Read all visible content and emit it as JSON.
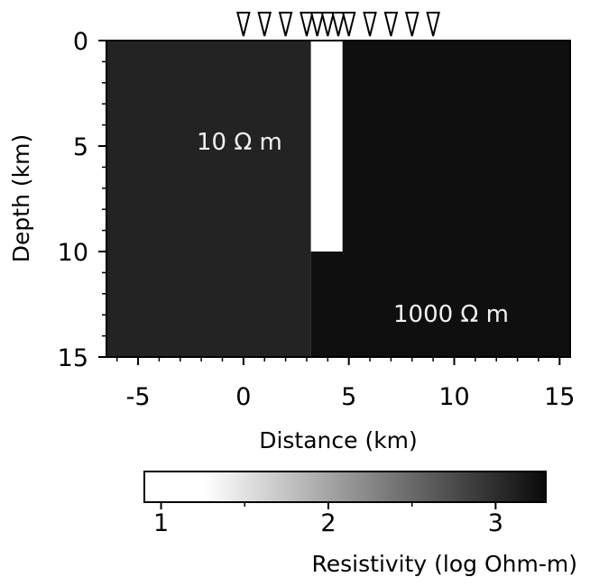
{
  "chart_data": {
    "type": "heatmap",
    "title": "",
    "xlabel": "Distance (km)",
    "ylabel": "Depth (km)",
    "xlim": [
      -6.5,
      15.5
    ],
    "ylim": [
      15,
      0
    ],
    "y_inverted": true,
    "x_ticks": [
      -5,
      0,
      5,
      10,
      15
    ],
    "y_ticks": [
      0,
      5,
      10,
      15
    ],
    "x_tick_labels": [
      "-5",
      "0",
      "5",
      "10",
      "15"
    ],
    "y_tick_labels": [
      "0",
      "5",
      "10",
      "15"
    ],
    "stations_x_km": [
      0,
      1,
      2,
      3,
      3.5,
      4,
      4.5,
      5,
      6,
      7,
      8,
      9
    ],
    "background": {
      "region": "x < 3.2 km",
      "label": "10 Ω m",
      "log_resistivity": 1
    },
    "conductor": {
      "x": [
        3.2,
        4.7
      ],
      "depth": [
        0,
        10
      ],
      "log_resistivity": 1
    },
    "host": {
      "region": "x > 4.7 km",
      "label": "1000 Ω m",
      "log_resistivity": 3
    },
    "colorbar": {
      "label": "Resistivity (log Ohm-m)",
      "range": [
        0.9,
        3.3
      ],
      "ticks": [
        1,
        2,
        3
      ],
      "tick_labels": [
        "1",
        "2",
        "3"
      ],
      "colors": [
        "#ffffff",
        "#0a0a0a"
      ]
    },
    "grid": false,
    "legend": "none"
  }
}
